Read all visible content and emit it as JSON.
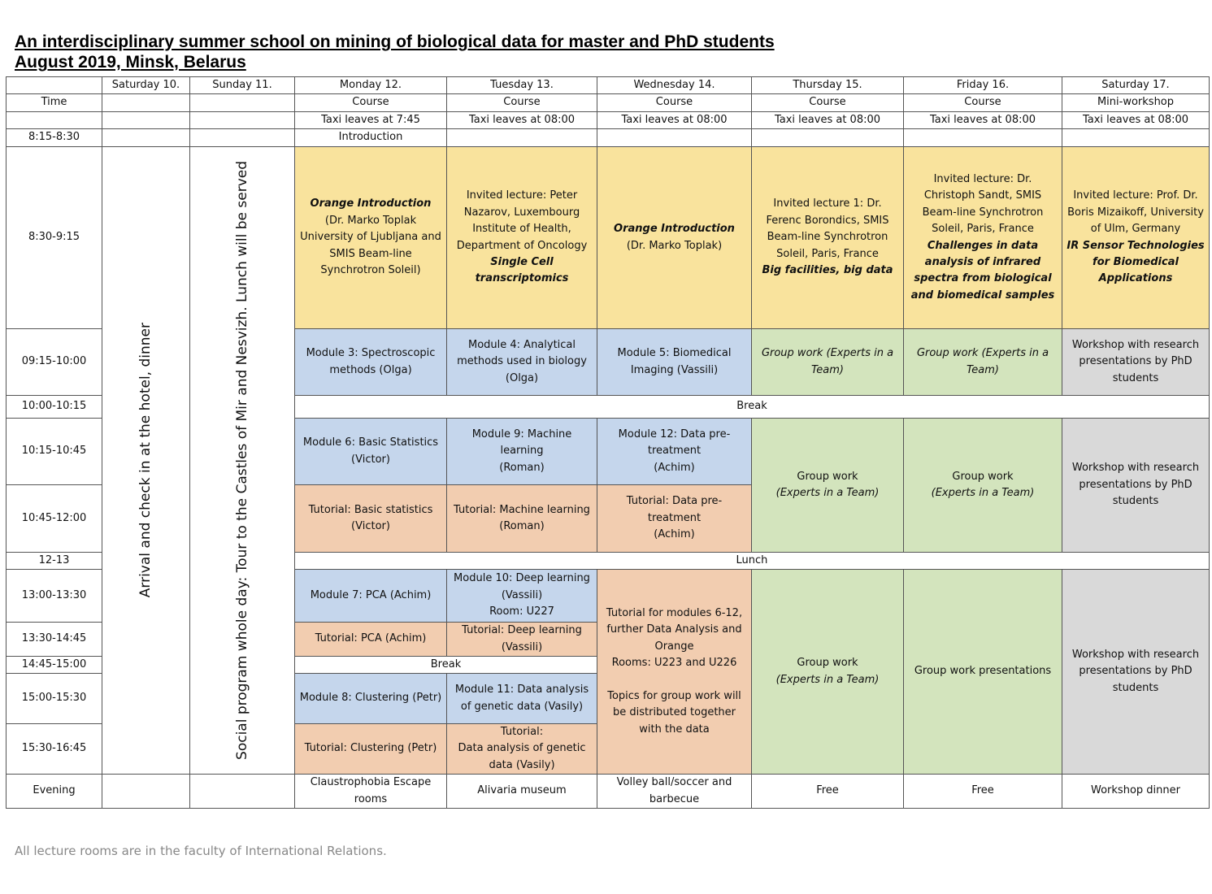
{
  "header": {
    "title": "An interdisciplinary summer school on mining of biological data for master and PhD students",
    "subtitle": "August 2019, Minsk, Belarus"
  },
  "table": {
    "days": [
      "Saturday 10.",
      "Sunday 11.",
      "Monday 12.",
      "Tuesday 13.",
      "Wednesday 14.",
      "Thursday 15.",
      "Friday 16.",
      "Saturday 17."
    ],
    "time_label": "Time",
    "types": [
      "Course",
      "Course",
      "Course",
      "Course",
      "Course",
      "Mini-workshop"
    ],
    "taxi": [
      "Taxi leaves at 7:45",
      "Taxi leaves at 08:00",
      "Taxi leaves at 08:00",
      "Taxi leaves at 08:00",
      "Taxi leaves at 08:00",
      "Taxi leaves at 08:00"
    ],
    "times": [
      "8:15-8:30",
      "8:30-9:15",
      "09:15-10:00",
      "10:00-10:15",
      "10:15-10:45",
      "10:45-12:00",
      "12-13",
      "13:00-13:30",
      "13:30-14:45",
      "14:45-15:00",
      "15:00-15:30",
      "15:30-16:45",
      "Evening"
    ],
    "introduction": "Introduction",
    "saturday_10": "Arrival and check in at the hotel, dinner",
    "sunday_11": "Social program whole day: Tour to the Castles of Mir and Nesvizh. Lunch will be served",
    "breaks": [
      "Break",
      "Lunch",
      "Break"
    ],
    "sessions": [
      [
        "Orange Introduction",
        "(Dr. Marko Toplak University of Ljubljana and SMIS Beam-line Synchrotron Soleil)"
      ],
      [
        "Invited lecture: Peter Nazarov, Luxembourg Institute of Health, Department of Oncology",
        "Single Cell transcriptomics"
      ],
      [
        "Orange Introduction",
        "(Dr. Marko Toplak)"
      ],
      [
        "Invited lecture 1: Dr. Ferenc Borondics, SMIS Beam-line Synchrotron Soleil, Paris, France",
        "Big facilities, big data"
      ],
      [
        "Invited lecture: Dr. Christoph Sandt, SMIS Beam-line Synchrotron Soleil, Paris, France",
        "Challenges in data analysis of infrared spectra from biological and biomedical samples"
      ],
      [
        "Invited lecture: Prof. Dr. Boris Mizaikoff, University of Ulm, Germany",
        "IR Sensor Technologies for Biomedical Applications"
      ],
      [
        "Module 3: Spectroscopic methods (Olga)"
      ],
      [
        "Module 4: Analytical methods used in biology (Olga)"
      ],
      [
        "Module 5: Biomedical Imaging (Vassili)"
      ],
      [
        "Group work (Experts in a Team)"
      ],
      [
        "Group work (Experts in a Team)"
      ],
      [
        "Workshop with research presentations by PhD students"
      ],
      [
        "Module 6: Basic Statistics (Victor)"
      ],
      [
        "Module 9: Machine learning",
        "(Roman)"
      ],
      [
        "Module 12: Data pre-treatment",
        "(Achim)"
      ],
      [
        "Group work",
        "(Experts in a Team)"
      ],
      [
        "Group work",
        "(Experts in a Team)"
      ],
      [
        "Workshop with research presentations by PhD students"
      ],
      [
        "Tutorial: Basic statistics (Victor)"
      ],
      [
        "Tutorial: Machine learning (Roman)"
      ],
      [
        "Tutorial: Data pre-treatment",
        "(Achim)"
      ],
      [
        "Module 7: PCA (Achim)"
      ],
      [
        "Module 10: Deep learning (Vassili)",
        "Room: U227"
      ],
      [
        "Tutorial for modules 6-12, further Data Analysis and Orange",
        "Rooms: U223 and U226",
        "Topics for group work will be distributed together with the data"
      ],
      [
        "Group work",
        "(Experts in a Team)"
      ],
      [
        "Group work presentations"
      ],
      [
        "Workshop with research presentations by PhD students"
      ],
      [
        "Tutorial: PCA (Achim)"
      ],
      [
        "Tutorial: Deep learning (Vassili)"
      ],
      [
        "Module 8: Clustering (Petr)"
      ],
      [
        "Module 11: Data analysis of genetic data (Vasily)"
      ],
      [
        "Tutorial: Clustering (Petr)"
      ],
      [
        "Tutorial:",
        "Data analysis of genetic data (Vasily)"
      ]
    ],
    "evening": [
      "Claustrophobia Escape rooms",
      "Alivaria museum",
      "Volley ball/soccer and barbecue",
      "Free",
      "Free",
      "Workshop dinner"
    ]
  },
  "footnote": "All lecture rooms are in the faculty of International Relations."
}
